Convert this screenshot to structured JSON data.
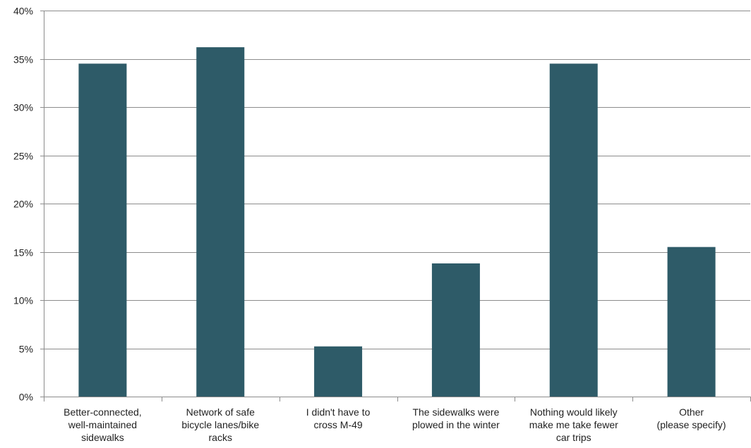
{
  "chart_data": {
    "type": "bar",
    "title": "",
    "xlabel": "",
    "ylabel": "",
    "categories": [
      [
        "Better-connected,",
        "well-maintained",
        "sidewalks"
      ],
      [
        "Network of safe",
        "bicycle lanes/bike",
        "racks"
      ],
      [
        "I didn't have to",
        "cross M-49"
      ],
      [
        "The sidewalks were",
        "plowed in the winter"
      ],
      [
        "Nothing would likely",
        "make me take fewer",
        "car trips"
      ],
      [
        "Other",
        "(please specify)"
      ]
    ],
    "values": [
      34.5,
      36.2,
      5.2,
      13.8,
      34.5,
      15.5
    ],
    "ylim": [
      0,
      40
    ],
    "yticks": [
      0,
      5,
      10,
      15,
      20,
      25,
      30,
      35,
      40
    ],
    "ytick_labels": [
      "0%",
      "5%",
      "10%",
      "15%",
      "20%",
      "25%",
      "30%",
      "35%",
      "40%"
    ],
    "grid": true,
    "legend": "none",
    "colors": {
      "bar": "#2e5b68",
      "grid": "#8c8c8c",
      "axis": "#8c8c8c"
    }
  }
}
